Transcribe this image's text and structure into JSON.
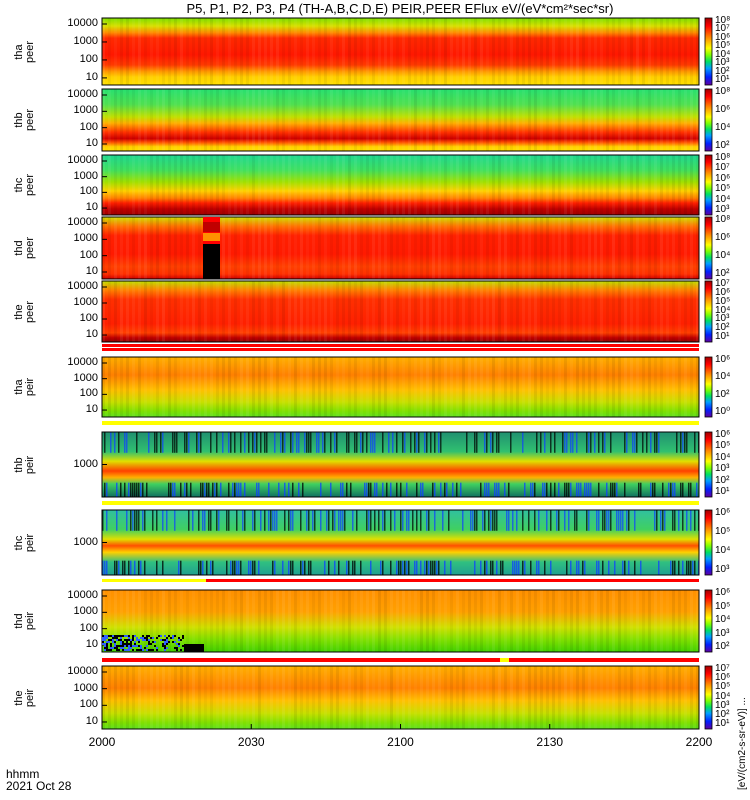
{
  "chart_data": {
    "type": "heatmap",
    "title": "P5, P1, P2, P3, P4 (TH-A,B,C,D,E) PEIR,PEER EFlux eV/(eV*cm²*sec*sr)",
    "x_ticks": [
      "2000",
      "2030",
      "2100",
      "2130",
      "2200"
    ],
    "x_label_rows": [
      "hhmm",
      "2021 Oct 28"
    ],
    "colorbar_unit": "[eV/(cm2-s-sr-eV)] ...",
    "panels": [
      {
        "probe": "tha",
        "species": "peer",
        "y_ticks": [
          "10000",
          "1000",
          "100",
          "10"
        ],
        "cb_ticks": [
          "10⁸",
          "10⁷",
          "10⁶",
          "10⁵",
          "10⁴",
          "10³",
          "10²",
          "10¹"
        ]
      },
      {
        "probe": "thb",
        "species": "peer",
        "y_ticks": [
          "10000",
          "1000",
          "100",
          "10"
        ],
        "cb_ticks": [
          "10⁸",
          "10⁶",
          "10⁴",
          "10²"
        ]
      },
      {
        "probe": "thc",
        "species": "peer",
        "y_ticks": [
          "10000",
          "1000",
          "100",
          "10"
        ],
        "cb_ticks": [
          "10⁸",
          "10⁷",
          "10⁶",
          "10⁵",
          "10⁴",
          "10³"
        ]
      },
      {
        "probe": "thd",
        "species": "peer",
        "y_ticks": [
          "10000",
          "1000",
          "100",
          "10"
        ],
        "cb_ticks": [
          "10⁸",
          "10⁶",
          "10⁴",
          "10²"
        ]
      },
      {
        "probe": "the",
        "species": "peer",
        "y_ticks": [
          "10000",
          "1000",
          "100",
          "10"
        ],
        "cb_ticks": [
          "10⁷",
          "10⁶",
          "10⁵",
          "10⁴",
          "10³",
          "10²",
          "10¹"
        ]
      },
      {
        "probe": "tha",
        "species": "peir",
        "y_ticks": [
          "10000",
          "1000",
          "100",
          "10"
        ],
        "cb_ticks": [
          "10⁶",
          "10⁴",
          "10²",
          "10⁰"
        ]
      },
      {
        "probe": "thb",
        "species": "peir",
        "y_ticks": [
          "1000"
        ],
        "cb_ticks": [
          "10⁶",
          "10⁵",
          "10⁴",
          "10³",
          "10²",
          "10¹"
        ]
      },
      {
        "probe": "thc",
        "species": "peir",
        "y_ticks": [
          "1000"
        ],
        "cb_ticks": [
          "10⁶",
          "10⁵",
          "10⁴",
          "10³"
        ]
      },
      {
        "probe": "thd",
        "species": "peir",
        "y_ticks": [
          "10000",
          "1000",
          "100",
          "10"
        ],
        "cb_ticks": [
          "10⁶",
          "10⁵",
          "10⁴",
          "10³",
          "10²"
        ]
      },
      {
        "probe": "the",
        "species": "peir",
        "y_ticks": [
          "10000",
          "1000",
          "100",
          "10"
        ],
        "cb_ticks": [
          "10⁷",
          "10⁶",
          "10⁵",
          "10⁴",
          "10³",
          "10²",
          "10¹"
        ]
      }
    ]
  }
}
